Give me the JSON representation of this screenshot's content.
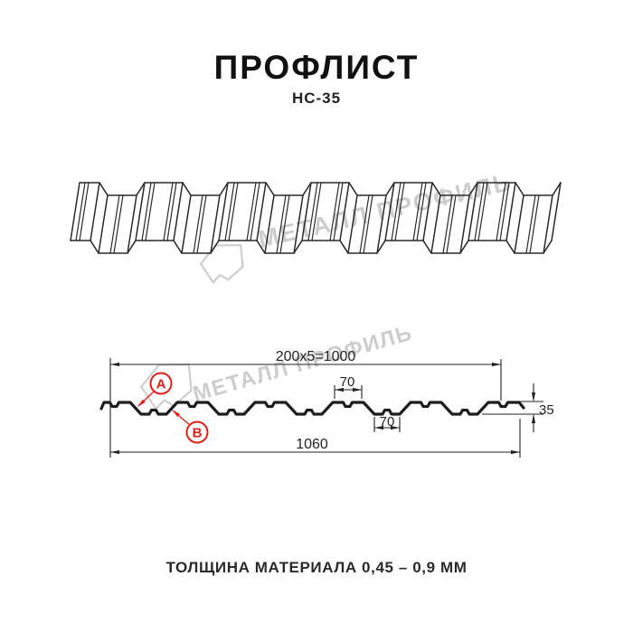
{
  "page": {
    "title": "ПРОФЛИСТ",
    "subtitle": "НС-35",
    "footer": "ТОЛЩИНА МАТЕРИАЛА 0,45 – 0,9 ММ"
  },
  "watermark": {
    "text": "МЕТАЛЛ ПРОФИЛЬ",
    "color": "#cdcdcd"
  },
  "section": {
    "dim_top": "200x5=1000",
    "dim_rib_top": "70",
    "dim_rib_bottom": "70",
    "dim_height": "35",
    "dim_total": "1060",
    "callout_a": "А",
    "callout_b": "В"
  },
  "profile": {
    "name": "НС-35",
    "module_mm": 200,
    "modules": 5,
    "cover_width_mm": 1000,
    "total_width_mm": 1060,
    "height_mm": 35,
    "rib_width_mm": 70
  },
  "colors": {
    "accent_red": "#e0201a",
    "line": "#222222",
    "watermark_gray": "#cdcdcd"
  }
}
